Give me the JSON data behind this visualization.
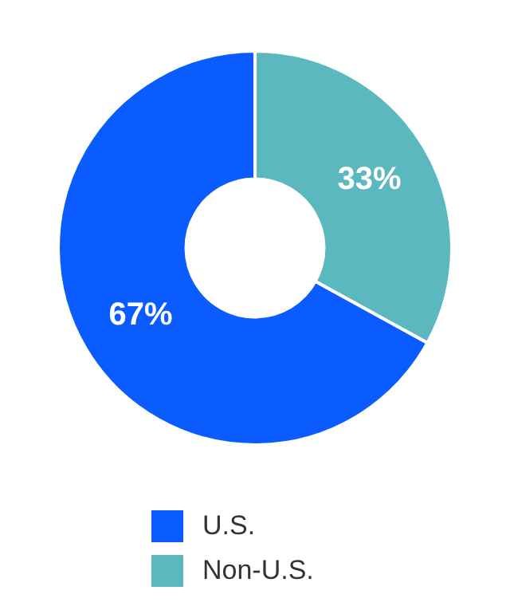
{
  "chart_data": {
    "type": "donut",
    "categories": [
      "U.S.",
      "Non-U.S."
    ],
    "values": [
      67,
      33
    ],
    "colors": [
      "#0a5cff",
      "#5bb8bf"
    ],
    "value_labels": [
      "67%",
      "33%"
    ],
    "legend": "bottom"
  }
}
